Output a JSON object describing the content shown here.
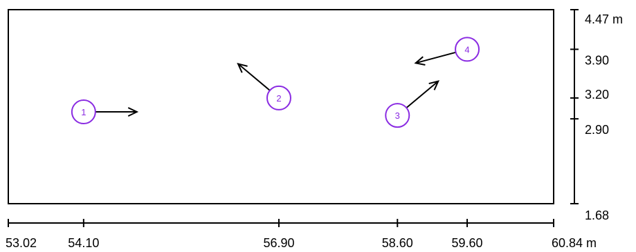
{
  "diagram": {
    "x_axis": {
      "range": [
        53.02,
        60.84
      ],
      "ticks": [
        {
          "value": 53.02,
          "label": "53.02"
        },
        {
          "value": 54.1,
          "label": "54.10"
        },
        {
          "value": 56.9,
          "label": "56.90"
        },
        {
          "value": 58.6,
          "label": "58.60"
        },
        {
          "value": 59.6,
          "label": "59.60"
        },
        {
          "value": 60.84,
          "label": "60.84 m"
        }
      ]
    },
    "y_axis": {
      "range": [
        1.68,
        4.47
      ],
      "ticks": [
        {
          "value": 4.47,
          "label": "4.47 m"
        },
        {
          "value": 3.9,
          "label": "3.90"
        },
        {
          "value": 3.2,
          "label": "3.20"
        },
        {
          "value": 2.9,
          "label": "2.90"
        },
        {
          "value": 1.68,
          "label": "1.68"
        }
      ]
    },
    "markers": [
      {
        "label": "1",
        "x": 54.1,
        "y": 3.0,
        "angle_deg": 0
      },
      {
        "label": "2",
        "x": 56.9,
        "y": 3.2,
        "angle_deg": 140
      },
      {
        "label": "3",
        "x": 58.6,
        "y": 2.95,
        "angle_deg": 40
      },
      {
        "label": "4",
        "x": 59.6,
        "y": 3.9,
        "angle_deg": 195
      }
    ],
    "colors": {
      "marker": "#8a2be2",
      "line": "#000000"
    }
  }
}
